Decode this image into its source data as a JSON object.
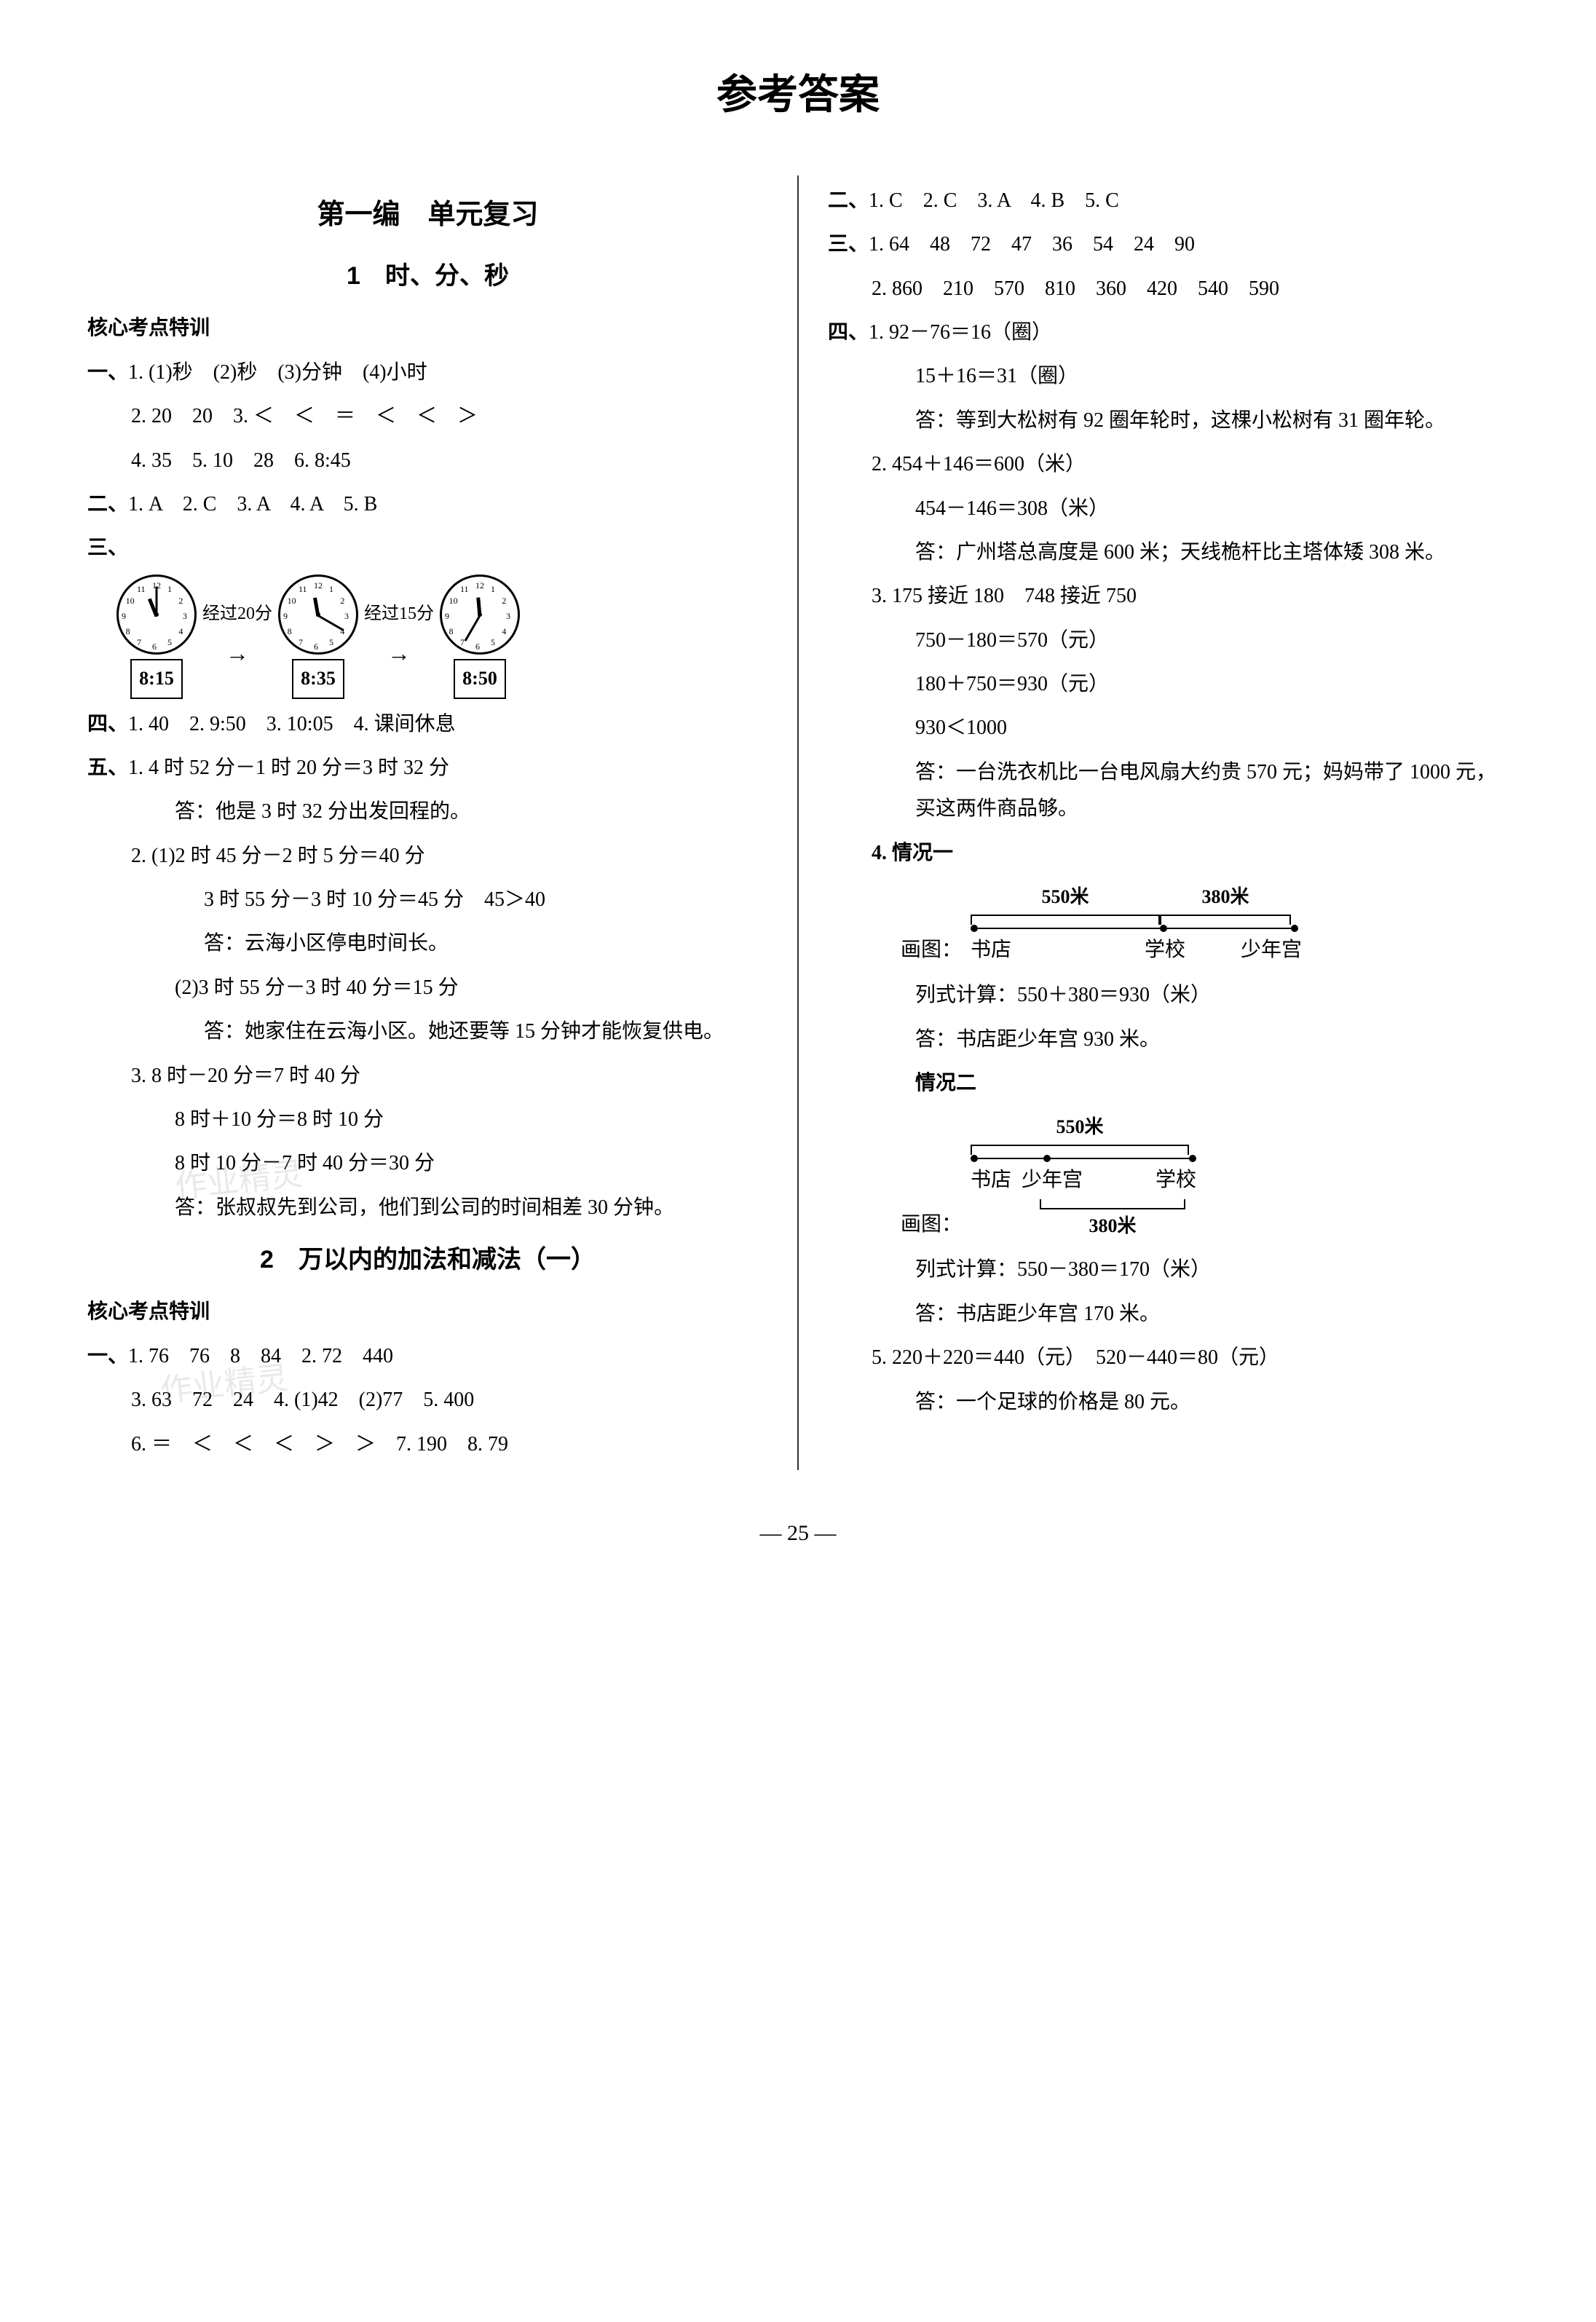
{
  "title": "参考答案",
  "page_number": "25",
  "watermark": "作业精灵",
  "left": {
    "section": "第一编　单元复习",
    "unit1_title": "1　时、分、秒",
    "core_heading": "核心考点特训",
    "q1": {
      "label": "一、",
      "l1": "1. (1)秒　(2)秒　(3)分钟　(4)小时",
      "l2": "2. 20　20　3. ＜　＜　＝　＜　＜　＞",
      "l3": "4. 35　5. 10　28　6. 8:45"
    },
    "q2": {
      "label": "二、",
      "l1": "1. A　2. C　3. A　4. A　5. B"
    },
    "q3": {
      "label": "三、",
      "clocks": [
        {
          "time": "8:15",
          "pass": "经过20分",
          "hr_deg": -22,
          "min_deg": 0
        },
        {
          "time": "8:35",
          "pass": "经过15分",
          "hr_deg": -10,
          "min_deg": 120
        },
        {
          "time": "8:50",
          "pass": "",
          "hr_deg": -5,
          "min_deg": 210
        }
      ]
    },
    "q4": {
      "label": "四、",
      "l1": "1. 40　2. 9:50　3. 10:05　4. 课间休息"
    },
    "q5": {
      "label": "五、",
      "p1_l1": "1. 4 时 52 分－1 时 20 分＝3 时 32 分",
      "p1_ans": "答：他是 3 时 32 分出发回程的。",
      "p2_l1": "2. (1)2 时 45 分－2 时 5 分＝40 分",
      "p2_l2": "3 时 55 分－3 时 10 分＝45 分　45＞40",
      "p2_ans": "答：云海小区停电时间长。",
      "p2b_l1": "(2)3 时 55 分－3 时 40 分＝15 分",
      "p2b_ans": "答：她家住在云海小区。她还要等 15 分钟才能恢复供电。",
      "p3_l1": "3. 8 时－20 分＝7 时 40 分",
      "p3_l2": "8 时＋10 分＝8 时 10 分",
      "p3_l3": "8 时 10 分－7 时 40 分＝30 分",
      "p3_ans": "答：张叔叔先到公司，他们到公司的时间相差 30 分钟。"
    },
    "unit2_title": "2　万以内的加法和减法（一）",
    "core_heading2": "核心考点特训",
    "u2q1": {
      "label": "一、",
      "l1": "1. 76　76　8　84　2. 72　440",
      "l2": "3. 63　72　24　4. (1)42　(2)77　5. 400",
      "l3": "6. ＝　＜　＜　＜　＞　＞　7. 190　8. 79"
    }
  },
  "right": {
    "q2": {
      "label": "二、",
      "l1": "1. C　2. C　3. A　4. B　5. C"
    },
    "q3": {
      "label": "三、",
      "l1": "1. 64　48　72　47　36　54　24　90",
      "l2": "2. 860　210　570　810　360　420　540　590"
    },
    "q4": {
      "label": "四、",
      "p1_l1": "1. 92－76＝16（圈）",
      "p1_l2": "15＋16＝31（圈）",
      "p1_ans": "答：等到大松树有 92 圈年轮时，这棵小松树有 31 圈年轮。",
      "p2_l1": "2. 454＋146＝600（米）",
      "p2_l2": "454－146＝308（米）",
      "p2_ans": "答：广州塔总高度是 600 米；天线桅杆比主塔体矮 308 米。",
      "p3_l1": "3. 175 接近 180　748 接近 750",
      "p3_l2": "750－180＝570（元）",
      "p3_l3": "180＋750＝930（元）",
      "p3_l4": "930＜1000",
      "p3_ans": "答：一台洗衣机比一台电风扇大约贵 570 元；妈妈带了 1000 元，买这两件商品够。",
      "p4_head": "4. 情况一",
      "d1": {
        "draw_label": "画图：",
        "seg1": "550米",
        "seg2": "380米",
        "n1": "书店",
        "n2": "学校",
        "n3": "少年宫",
        "w1": 260,
        "w2": 180
      },
      "p4_calc_lbl": "列式计算：",
      "p4_calc": "550＋380＝930（米）",
      "p4_ans": "答：书店距少年宫 930 米。",
      "p4b_head": "情况二",
      "d2": {
        "draw_label": "画图：",
        "top": "550米",
        "bottom": "380米",
        "n1": "书店",
        "n2": "少年宫",
        "n3": "学校",
        "w_total": 300,
        "w_mid": 200
      },
      "p4b_calc": "550－380＝170（米）",
      "p4b_ans": "答：书店距少年宫 170 米。",
      "p5_l1": "5. 220＋220＝440（元）　520－440＝80（元）",
      "p5_ans": "答：一个足球的价格是 80 元。"
    }
  }
}
